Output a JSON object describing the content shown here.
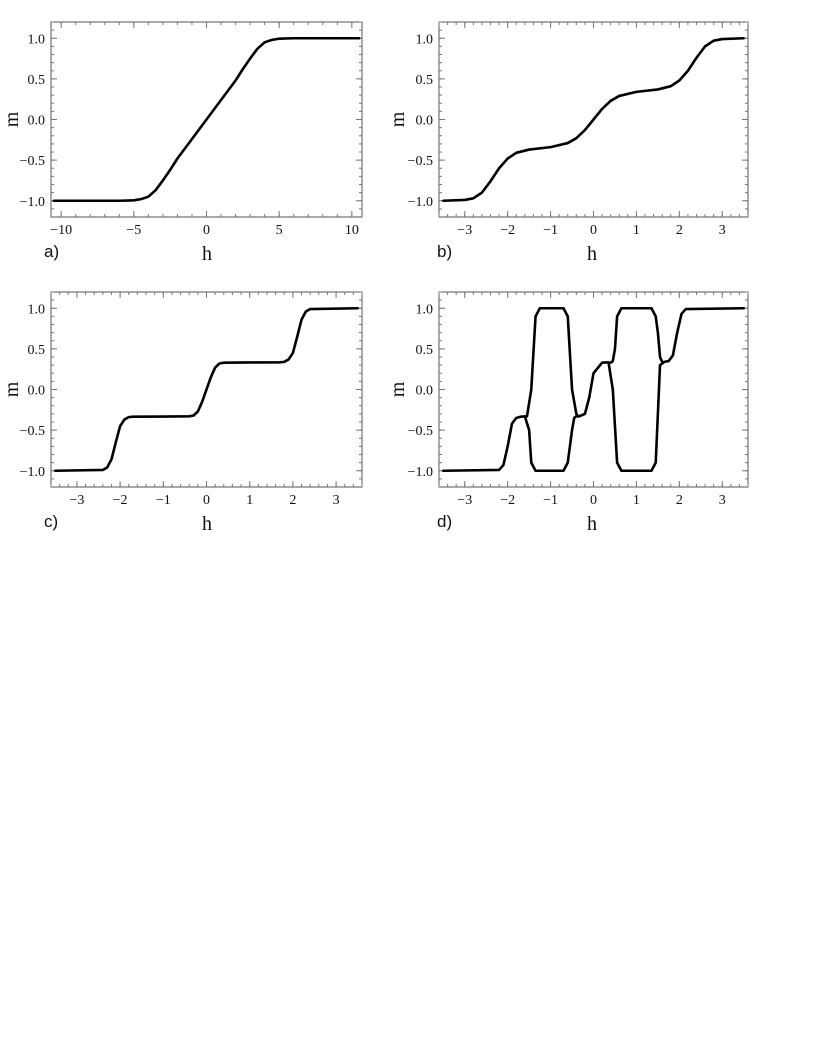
{
  "chart_data": [
    {
      "type": "line",
      "panel_label": "a)",
      "xlabel": "h",
      "ylabel": "m",
      "xlim": [
        -10.7,
        10.7
      ],
      "ylim": [
        -1.2,
        1.2
      ],
      "xticks": [
        -10,
        -5,
        0,
        5,
        10
      ],
      "xtick_labels": [
        "−10",
        "−5",
        "0",
        "5",
        "10"
      ],
      "yticks": [
        -1.0,
        -0.5,
        0.0,
        0.5,
        1.0
      ],
      "ytick_labels": [
        "−1.0",
        "−0.5",
        "0.0",
        "0.5",
        "1.0"
      ],
      "series": [
        {
          "x": [
            -10.5,
            -6,
            -5,
            -4.5,
            -4,
            -3.5,
            -3,
            -2.5,
            -2,
            -1,
            0,
            1,
            2,
            2.5,
            3,
            3.5,
            4,
            4.5,
            5,
            6,
            10.5
          ],
          "y": [
            -1.0,
            -1.0,
            -0.995,
            -0.98,
            -0.95,
            -0.87,
            -0.75,
            -0.62,
            -0.48,
            -0.24,
            0.0,
            0.24,
            0.48,
            0.62,
            0.75,
            0.87,
            0.95,
            0.98,
            0.995,
            1.0,
            1.0
          ]
        }
      ]
    },
    {
      "type": "line",
      "panel_label": "b)",
      "xlabel": "h",
      "ylabel": "m",
      "xlim": [
        -3.6,
        3.6
      ],
      "ylim": [
        -1.2,
        1.2
      ],
      "xticks": [
        -3,
        -2,
        -1,
        0,
        1,
        2,
        3
      ],
      "xtick_labels": [
        "−3",
        "−2",
        "−1",
        "0",
        "1",
        "2",
        "3"
      ],
      "yticks": [
        -1.0,
        -0.5,
        0.0,
        0.5,
        1.0
      ],
      "ytick_labels": [
        "−1.0",
        "−0.5",
        "0.0",
        "0.5",
        "1.0"
      ],
      "series": [
        {
          "x": [
            -3.5,
            -3.0,
            -2.8,
            -2.6,
            -2.4,
            -2.2,
            -2.0,
            -1.8,
            -1.5,
            -1.0,
            -0.6,
            -0.4,
            -0.2,
            0.0,
            0.2,
            0.4,
            0.6,
            1.0,
            1.5,
            1.8,
            2.0,
            2.2,
            2.4,
            2.6,
            2.8,
            3.0,
            3.5
          ],
          "y": [
            -1.0,
            -0.99,
            -0.97,
            -0.9,
            -0.76,
            -0.6,
            -0.48,
            -0.41,
            -0.37,
            -0.34,
            -0.29,
            -0.23,
            -0.13,
            0.0,
            0.13,
            0.23,
            0.29,
            0.34,
            0.37,
            0.41,
            0.48,
            0.6,
            0.76,
            0.9,
            0.97,
            0.99,
            1.0
          ]
        }
      ]
    },
    {
      "type": "line",
      "panel_label": "c)",
      "xlabel": "h",
      "ylabel": "m",
      "xlim": [
        -3.6,
        3.6
      ],
      "ylim": [
        -1.2,
        1.2
      ],
      "xticks": [
        -3,
        -2,
        -1,
        0,
        1,
        2,
        3
      ],
      "xtick_labels": [
        "−3",
        "−2",
        "−1",
        "0",
        "1",
        "2",
        "3"
      ],
      "yticks": [
        -1.0,
        -0.5,
        0.0,
        0.5,
        1.0
      ],
      "ytick_labels": [
        "−1.0",
        "−0.5",
        "0.0",
        "0.5",
        "1.0"
      ],
      "series": [
        {
          "x": [
            -3.5,
            -2.4,
            -2.3,
            -2.2,
            -2.1,
            -2.0,
            -1.9,
            -1.8,
            -1.7,
            -1.0,
            -0.4,
            -0.3,
            -0.2,
            -0.1,
            0.0,
            0.1,
            0.2,
            0.3,
            0.4,
            1.0,
            1.7,
            1.8,
            1.9,
            2.0,
            2.1,
            2.2,
            2.3,
            2.4,
            3.5
          ],
          "y": [
            -1.0,
            -0.99,
            -0.96,
            -0.86,
            -0.65,
            -0.45,
            -0.37,
            -0.34,
            -0.335,
            -0.333,
            -0.33,
            -0.32,
            -0.27,
            -0.15,
            0.0,
            0.15,
            0.27,
            0.32,
            0.33,
            0.333,
            0.335,
            0.34,
            0.37,
            0.45,
            0.65,
            0.86,
            0.96,
            0.99,
            1.0
          ]
        }
      ]
    },
    {
      "type": "line",
      "panel_label": "d)",
      "xlabel": "h",
      "ylabel": "m",
      "xlim": [
        -3.6,
        3.6
      ],
      "ylim": [
        -1.2,
        1.2
      ],
      "xticks": [
        -3,
        -2,
        -1,
        0,
        1,
        2,
        3
      ],
      "xtick_labels": [
        "−3",
        "−2",
        "−1",
        "0",
        "1",
        "2",
        "3"
      ],
      "yticks": [
        -1.0,
        -0.5,
        0.0,
        0.5,
        1.0
      ],
      "ytick_labels": [
        "−1.0",
        "−0.5",
        "0.0",
        "0.5",
        "1.0"
      ],
      "series": [
        {
          "x": [
            -3.5,
            -2.2,
            -2.1,
            -2.0,
            -1.9,
            -1.8,
            -1.7,
            -1.55,
            -1.45,
            -1.35,
            -1.25,
            -0.7,
            -0.6,
            -0.5,
            -0.4,
            -0.35,
            -0.2,
            -0.1,
            0.0,
            0.2,
            0.35,
            0.45,
            0.55,
            0.65,
            0.75,
            1.35,
            1.45,
            1.55,
            1.65,
            1.75,
            1.85,
            1.95,
            2.05,
            2.15,
            3.5
          ],
          "y": [
            -1.0,
            -0.99,
            -0.93,
            -0.7,
            -0.42,
            -0.35,
            -0.335,
            -0.33,
            0.0,
            0.9,
            1.0,
            1.0,
            0.9,
            0.0,
            -0.3,
            -0.333,
            -0.3,
            -0.1,
            0.2,
            0.33,
            0.335,
            0.0,
            -0.9,
            -1.0,
            -1.0,
            -1.0,
            -0.9,
            0.3,
            0.34,
            0.35,
            0.42,
            0.7,
            0.93,
            0.99,
            1.0
          ]
        },
        {
          "x": [
            -1.6,
            -1.5,
            -1.45,
            -1.35,
            -1.25,
            -0.7,
            -0.6,
            -0.55,
            -0.5,
            -0.45,
            -0.4
          ],
          "y": [
            -0.33,
            -0.5,
            -0.9,
            -1.0,
            -1.0,
            -1.0,
            -0.9,
            -0.7,
            -0.5,
            -0.35,
            -0.33
          ]
        },
        {
          "x": [
            0.4,
            0.45,
            0.5,
            0.55,
            0.65,
            0.75,
            1.35,
            1.45,
            1.5,
            1.55,
            1.6
          ],
          "y": [
            0.33,
            0.35,
            0.5,
            0.9,
            1.0,
            1.0,
            1.0,
            0.9,
            0.7,
            0.4,
            0.34
          ]
        }
      ]
    }
  ]
}
